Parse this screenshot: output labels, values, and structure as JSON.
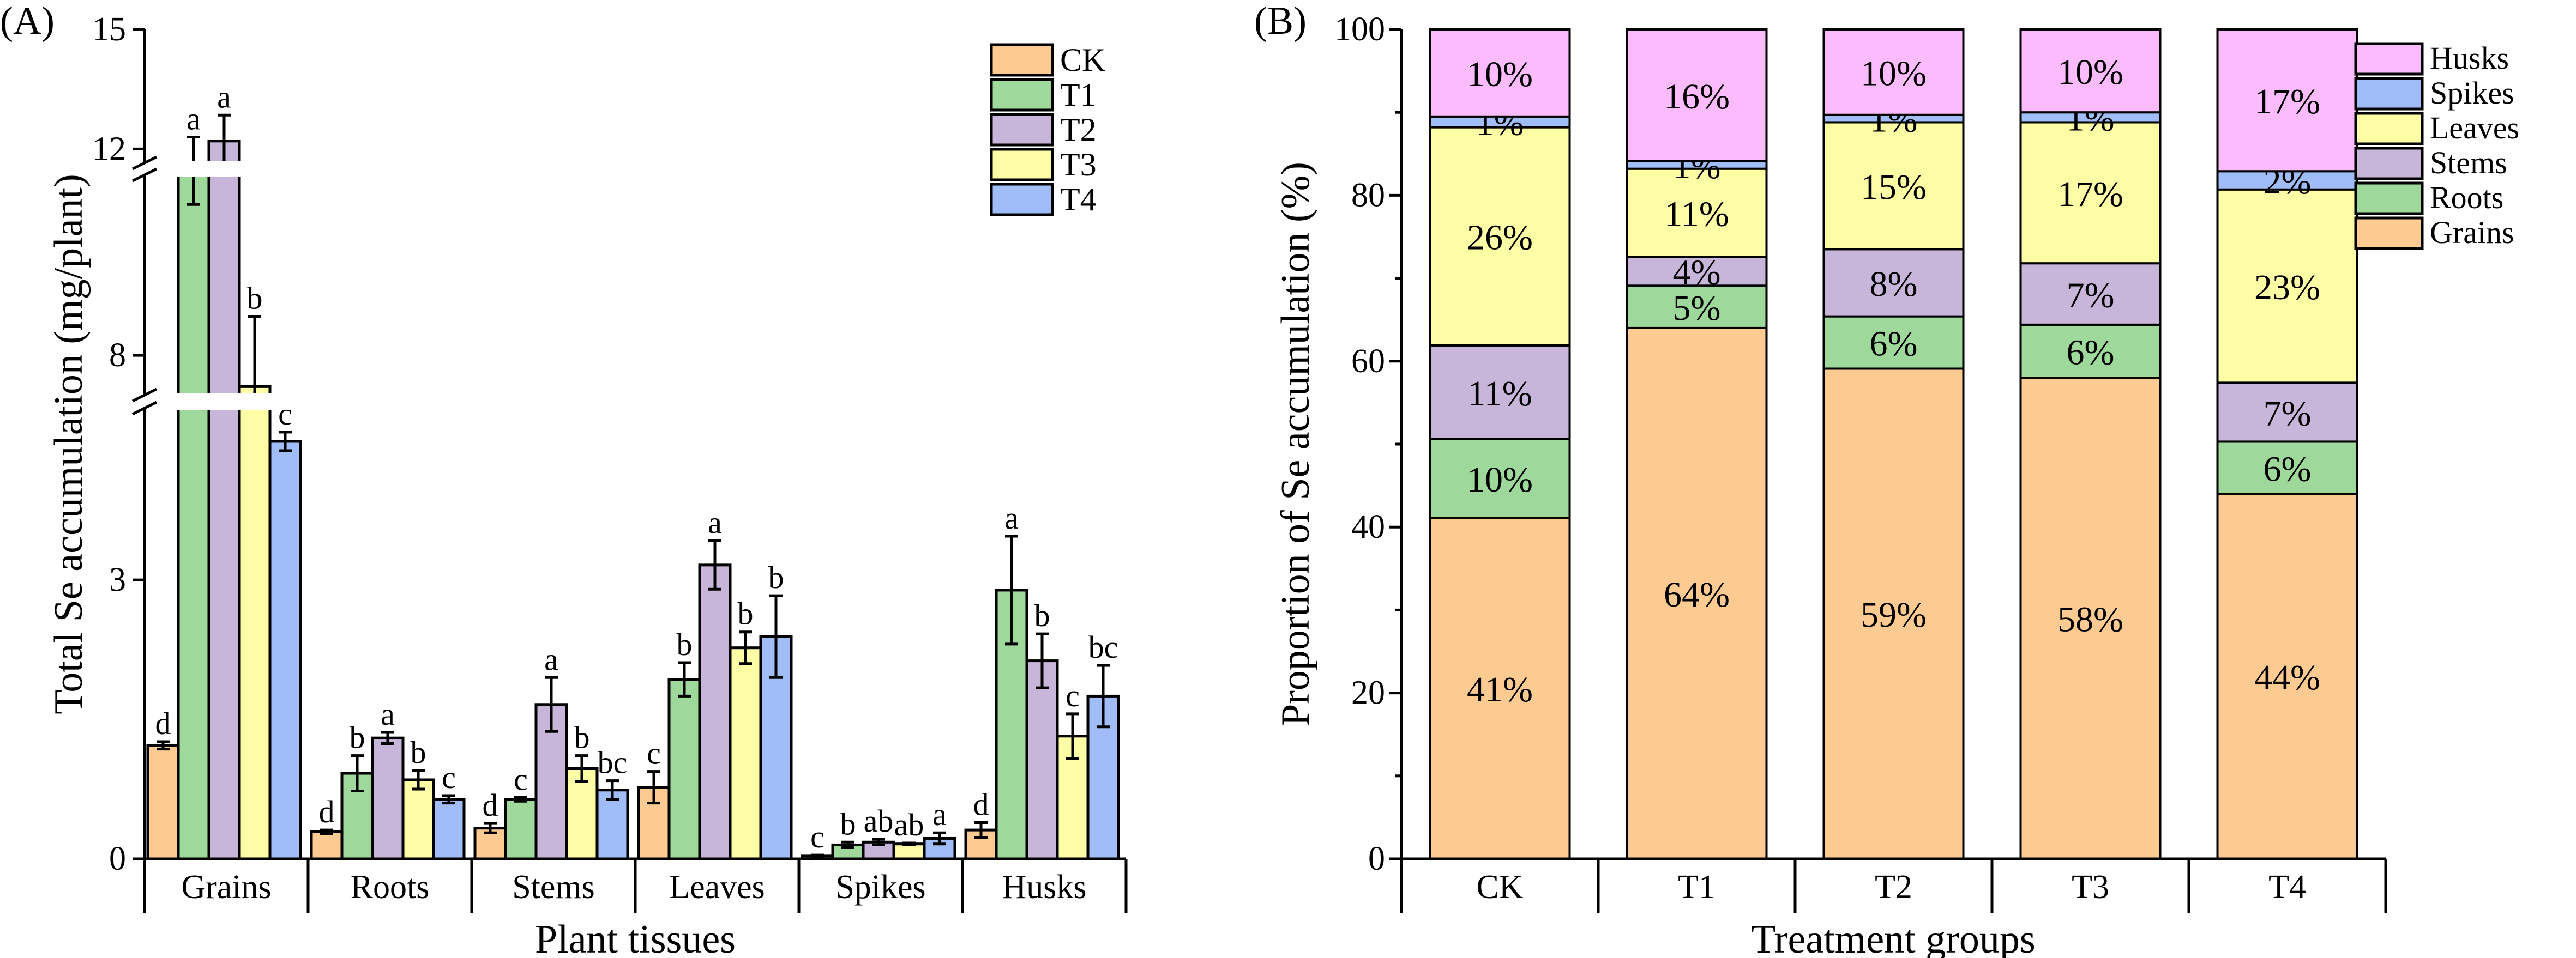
{
  "chart_data": [
    {
      "type": "bar",
      "panel_label": "(A)",
      "title": "",
      "xlabel": "Plant tissues",
      "ylabel": "Total Se accumulation (mg/plant)",
      "categories": [
        "Grains",
        "Roots",
        "Stems",
        "Leaves",
        "Spikes",
        "Husks"
      ],
      "y_ticks": [
        0,
        3,
        8,
        12,
        15
      ],
      "y_tick_labels": [
        "0",
        "3",
        "8",
        "12",
        "15"
      ],
      "ylim": [
        0,
        15
      ],
      "axis_breaks": [
        [
          4.9,
          7.1
        ],
        [
          11.5,
          11.5
        ]
      ],
      "legend_position": "top-right",
      "series": [
        {
          "name": "CK",
          "color": "#FDCB92",
          "values": [
            1.22,
            0.29,
            0.33,
            0.77,
            0.03,
            0.31
          ],
          "errors": [
            0.04,
            0.02,
            0.05,
            0.17,
            0.01,
            0.08
          ],
          "letters": [
            "d",
            "d",
            "d",
            "c",
            "c",
            "d"
          ]
        },
        {
          "name": "T1",
          "color": "#9ED89A",
          "values": [
            11.6,
            0.92,
            0.64,
            1.93,
            0.15,
            2.89
          ],
          "errors": [
            0.7,
            0.19,
            0.02,
            0.18,
            0.03,
            0.58
          ],
          "letters": [
            "a",
            "b",
            "c",
            "b",
            "b",
            "a"
          ]
        },
        {
          "name": "T2",
          "color": "#C7B6D9",
          "values": [
            12.2,
            1.3,
            1.66,
            3.16,
            0.18,
            2.13
          ],
          "errors": [
            0.65,
            0.06,
            0.29,
            0.26,
            0.03,
            0.29
          ],
          "letters": [
            "a",
            "a",
            "a",
            "a",
            "ab",
            "b"
          ]
        },
        {
          "name": "T3",
          "color": "#FDFDA5",
          "values": [
            7.4,
            0.85,
            0.97,
            2.27,
            0.16,
            1.32
          ],
          "errors": [
            1.35,
            0.1,
            0.14,
            0.17,
            0.01,
            0.24
          ],
          "letters": [
            "b",
            "b",
            "b",
            "b",
            "ab",
            "c"
          ]
        },
        {
          "name": "T4",
          "color": "#A0BDF7",
          "values": [
            4.49,
            0.64,
            0.74,
            2.39,
            0.22,
            1.75
          ],
          "errors": [
            0.1,
            0.04,
            0.1,
            0.44,
            0.06,
            0.33
          ],
          "letters": [
            "c",
            "c",
            "bc",
            "b",
            "a",
            "bc"
          ]
        }
      ]
    },
    {
      "type": "bar",
      "stacked": true,
      "panel_label": "(B)",
      "title": "",
      "xlabel": "Treatment groups",
      "ylabel": "Proportion of Se accumulation (%)",
      "categories": [
        "CK",
        "T1",
        "T2",
        "T3",
        "T4"
      ],
      "y_ticks": [
        0,
        20,
        40,
        60,
        80,
        100
      ],
      "y_tick_labels": [
        "0",
        "20",
        "40",
        "60",
        "80",
        "100"
      ],
      "ylim": [
        0,
        100
      ],
      "legend_position": "right",
      "series": [
        {
          "name": "Grains",
          "color": "#FDCB92",
          "values": [
            41.1,
            64.0,
            59.1,
            58.0,
            44.0
          ],
          "labels": [
            "41%",
            "64%",
            "59%",
            "58%",
            "44%"
          ]
        },
        {
          "name": "Roots",
          "color": "#9ED89A",
          "values": [
            9.5,
            5.1,
            6.3,
            6.4,
            6.3
          ],
          "labels": [
            "10%",
            "5%",
            "6%",
            "6%",
            "6%"
          ]
        },
        {
          "name": "Stems",
          "color": "#C7B6D9",
          "values": [
            11.3,
            3.5,
            8.1,
            7.4,
            7.1
          ],
          "labels": [
            "11%",
            "4%",
            "8%",
            "7%",
            "7%"
          ]
        },
        {
          "name": "Leaves",
          "color": "#FDFDA5",
          "values": [
            26.3,
            10.6,
            15.3,
            17.0,
            23.3
          ],
          "labels": [
            "26%",
            "11%",
            "15%",
            "17%",
            "23%"
          ]
        },
        {
          "name": "Spikes",
          "color": "#A0BDF7",
          "values": [
            1.3,
            0.9,
            0.9,
            1.2,
            2.2
          ],
          "labels": [
            "1%",
            "1%",
            "1%",
            "1%",
            "2%"
          ]
        },
        {
          "name": "Husks",
          "color": "#FCBBFC",
          "values": [
            10.5,
            15.9,
            10.3,
            10.0,
            17.1
          ],
          "labels": [
            "10%",
            "16%",
            "10%",
            "10%",
            "17%"
          ]
        }
      ],
      "legend_order": [
        "Husks",
        "Spikes",
        "Leaves",
        "Stems",
        "Roots",
        "Grains"
      ]
    }
  ]
}
